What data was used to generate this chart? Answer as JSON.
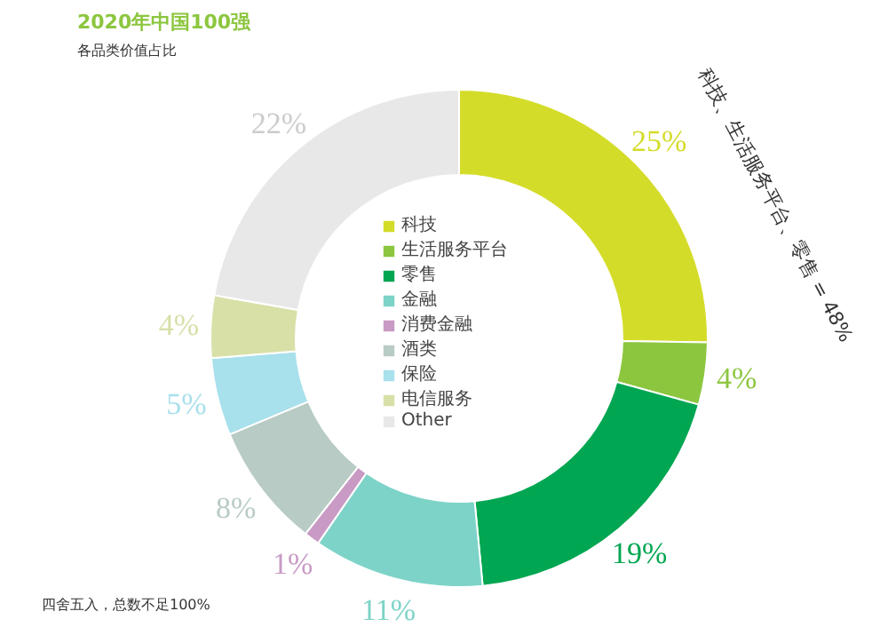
{
  "chart_data": {
    "type": "donut",
    "title": "2020年中国100强",
    "subtitle": "各品类价值占比",
    "categories": [
      "科技",
      "生活服务平台",
      "零售",
      "金融",
      "消费金融",
      "酒类",
      "保险",
      "电信服务",
      "Other"
    ],
    "values": [
      25,
      4,
      19,
      11,
      1,
      8,
      5,
      4,
      22
    ],
    "colors": [
      "#d4dc2a",
      "#8cc63f",
      "#00a651",
      "#7dd3c8",
      "#c89ac4",
      "#b8cbc4",
      "#a8e0ec",
      "#d8e0a8",
      "#e8e8e8"
    ],
    "value_labels": [
      "25%",
      "4%",
      "19%",
      "11%",
      "1%",
      "8%",
      "5%",
      "4%",
      "22%"
    ],
    "legend": "center",
    "annotations": [
      "科技、生活服务平台、零售 = 48%",
      "四舍五入，总数不足100%"
    ]
  }
}
